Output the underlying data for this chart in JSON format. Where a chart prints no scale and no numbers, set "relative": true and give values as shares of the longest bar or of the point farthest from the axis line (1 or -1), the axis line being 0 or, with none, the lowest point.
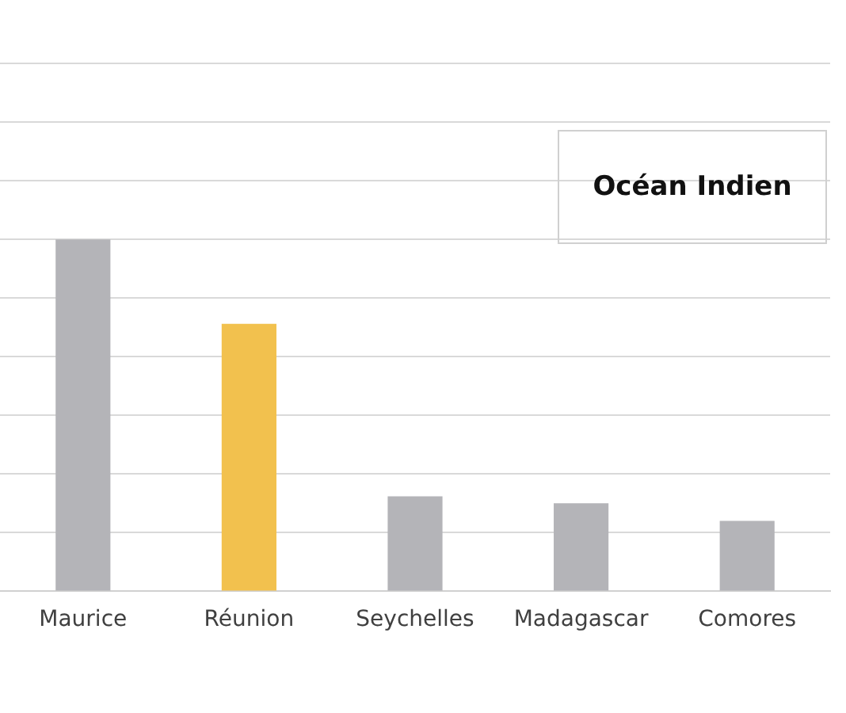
{
  "chart_data": {
    "type": "bar",
    "relative": true,
    "categories": [
      "Maurice",
      "Réunion",
      "Seychelles",
      "Madagascar",
      "Comores"
    ],
    "values": [
      1,
      0.76,
      0.27,
      0.25,
      0.2
    ],
    "colors": [
      "#b4b4b8",
      "#f2c14e",
      "#b4b4b8",
      "#b4b4b8",
      "#b4b4b8"
    ],
    "grid": "y",
    "annotations": [
      "Océan Indien"
    ]
  }
}
